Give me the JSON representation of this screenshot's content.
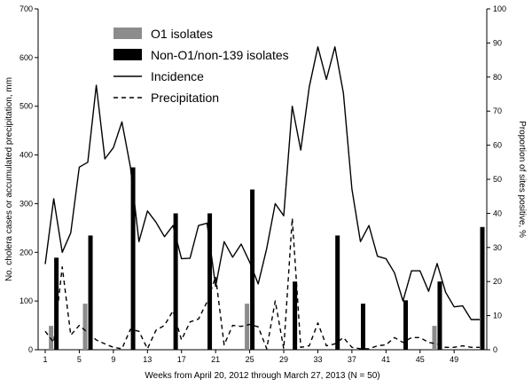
{
  "chart_data": {
    "type": "bar",
    "title": "",
    "xlabel": "Weeks from April 20, 2012 through March 27, 2013 (N = 50)",
    "ylabel": "No. cholera cases or accumulated precipitation, mm",
    "y2label": "Proportion of sites positive, %",
    "xlim": [
      1,
      52
    ],
    "ylim": [
      0,
      700
    ],
    "y2lim": [
      0,
      100
    ],
    "x_ticks": [
      1,
      5,
      9,
      13,
      17,
      21,
      25,
      29,
      33,
      37,
      41,
      45,
      49
    ],
    "y_ticks": [
      0,
      100,
      200,
      300,
      400,
      500,
      600,
      700
    ],
    "y2_ticks": [
      0,
      10,
      20,
      30,
      40,
      50,
      60,
      70,
      80,
      90,
      100
    ],
    "grid": false,
    "legend_position": "top-center",
    "series": [
      {
        "name": "O1 isolates",
        "type": "bar",
        "axis": "right",
        "color": "#8c8c8c",
        "x": [
          2,
          6,
          25,
          47
        ],
        "values": [
          7,
          13.5,
          13.5,
          7
        ]
      },
      {
        "name": "Non-O1/non-139 isolates",
        "type": "bar",
        "axis": "right",
        "color": "#000000",
        "x": [
          2,
          6,
          11,
          16,
          20,
          25,
          30,
          35,
          38,
          43,
          47,
          52
        ],
        "values": [
          27,
          33.5,
          53.5,
          40,
          40,
          47,
          20,
          33.5,
          13.5,
          14.5,
          20,
          36
        ]
      },
      {
        "name": "Incidence",
        "type": "line",
        "axis": "left",
        "color": "#000000",
        "dash": "solid",
        "x": [
          1,
          2,
          3,
          4,
          5,
          6,
          7,
          8,
          9,
          10,
          11,
          12,
          13,
          14,
          15,
          16,
          17,
          18,
          19,
          20,
          21,
          22,
          23,
          24,
          25,
          26,
          27,
          28,
          29,
          30,
          31,
          32,
          33,
          34,
          35,
          36,
          37,
          38,
          39,
          40,
          41,
          42,
          43,
          44,
          45,
          46,
          47,
          48,
          49,
          50,
          51,
          52
        ],
        "values": [
          176,
          310,
          200,
          240,
          375,
          385,
          543,
          392,
          415,
          468,
          375,
          222,
          285,
          262,
          232,
          255,
          187,
          188,
          255,
          260,
          130,
          222,
          190,
          217,
          180,
          135,
          208,
          300,
          275,
          500,
          410,
          540,
          622,
          555,
          622,
          527,
          330,
          222,
          255,
          192,
          187,
          158,
          100,
          162,
          162,
          120,
          177,
          118,
          88,
          90,
          62,
          62
        ]
      },
      {
        "name": "Precipitation",
        "type": "line",
        "axis": "left",
        "color": "#000000",
        "dash": "dashed",
        "x": [
          1,
          2,
          3,
          4,
          5,
          6,
          7,
          8,
          9,
          10,
          11,
          12,
          13,
          14,
          15,
          16,
          17,
          18,
          19,
          20,
          21,
          22,
          23,
          24,
          25,
          26,
          27,
          28,
          29,
          30,
          31,
          32,
          33,
          34,
          35,
          36,
          37,
          38,
          39,
          40,
          41,
          42,
          43,
          44,
          45,
          46,
          47,
          48,
          49,
          50,
          51,
          52
        ],
        "values": [
          38,
          15,
          170,
          30,
          50,
          35,
          20,
          12,
          5,
          2,
          42,
          38,
          2,
          40,
          50,
          80,
          20,
          57,
          63,
          98,
          150,
          10,
          50,
          48,
          52,
          47,
          2,
          100,
          2,
          270,
          5,
          8,
          55,
          8,
          12,
          25,
          5,
          2,
          2,
          8,
          10,
          25,
          15,
          25,
          25,
          15,
          12,
          5,
          5,
          8,
          5,
          5
        ]
      }
    ]
  }
}
